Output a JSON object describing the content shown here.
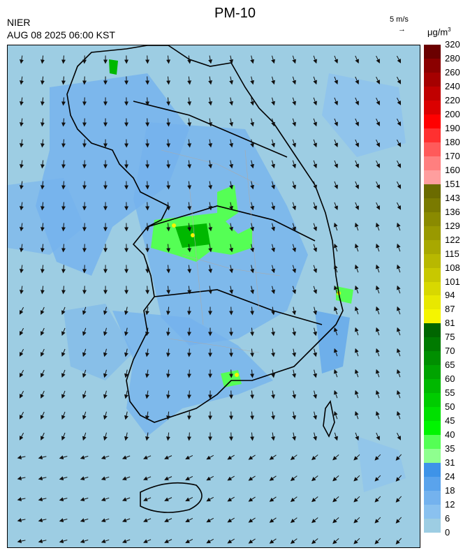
{
  "header": {
    "agency": "NIER",
    "timestamp": "AUG 08 2025 06:00 KST",
    "title": "PM-10",
    "wind_reference": "5 m/s",
    "unit_base": "μg/m",
    "unit_exp": "3"
  },
  "colorbar": {
    "labels": [
      "320",
      "280",
      "260",
      "240",
      "220",
      "200",
      "190",
      "180",
      "170",
      "160",
      "151",
      "143",
      "136",
      "129",
      "122",
      "115",
      "108",
      "101",
      "94",
      "87",
      "81",
      "75",
      "70",
      "65",
      "60",
      "55",
      "50",
      "45",
      "40",
      "35",
      "31",
      "24",
      "18",
      "12",
      "6",
      "0"
    ],
    "colors": [
      "#6b0000",
      "#8b0000",
      "#a50000",
      "#c00000",
      "#db0000",
      "#ff0000",
      "#ff3030",
      "#ff5a5a",
      "#ff7f7f",
      "#ff9e9e",
      "#6b6b00",
      "#7a7a00",
      "#8a8a00",
      "#999900",
      "#a8a800",
      "#b8b800",
      "#c8c800",
      "#d8d800",
      "#e8e800",
      "#f5f500",
      "#006600",
      "#007a00",
      "#008f00",
      "#00a300",
      "#00b800",
      "#00cc00",
      "#00e000",
      "#00f500",
      "#55ff55",
      "#8fff8f",
      "#3e93e8",
      "#5aa3ec",
      "#74b2ee",
      "#8ac1ef",
      "#9dcde3"
    ]
  },
  "icons": {
    "wind_arrow": "arrow-right-icon"
  }
}
